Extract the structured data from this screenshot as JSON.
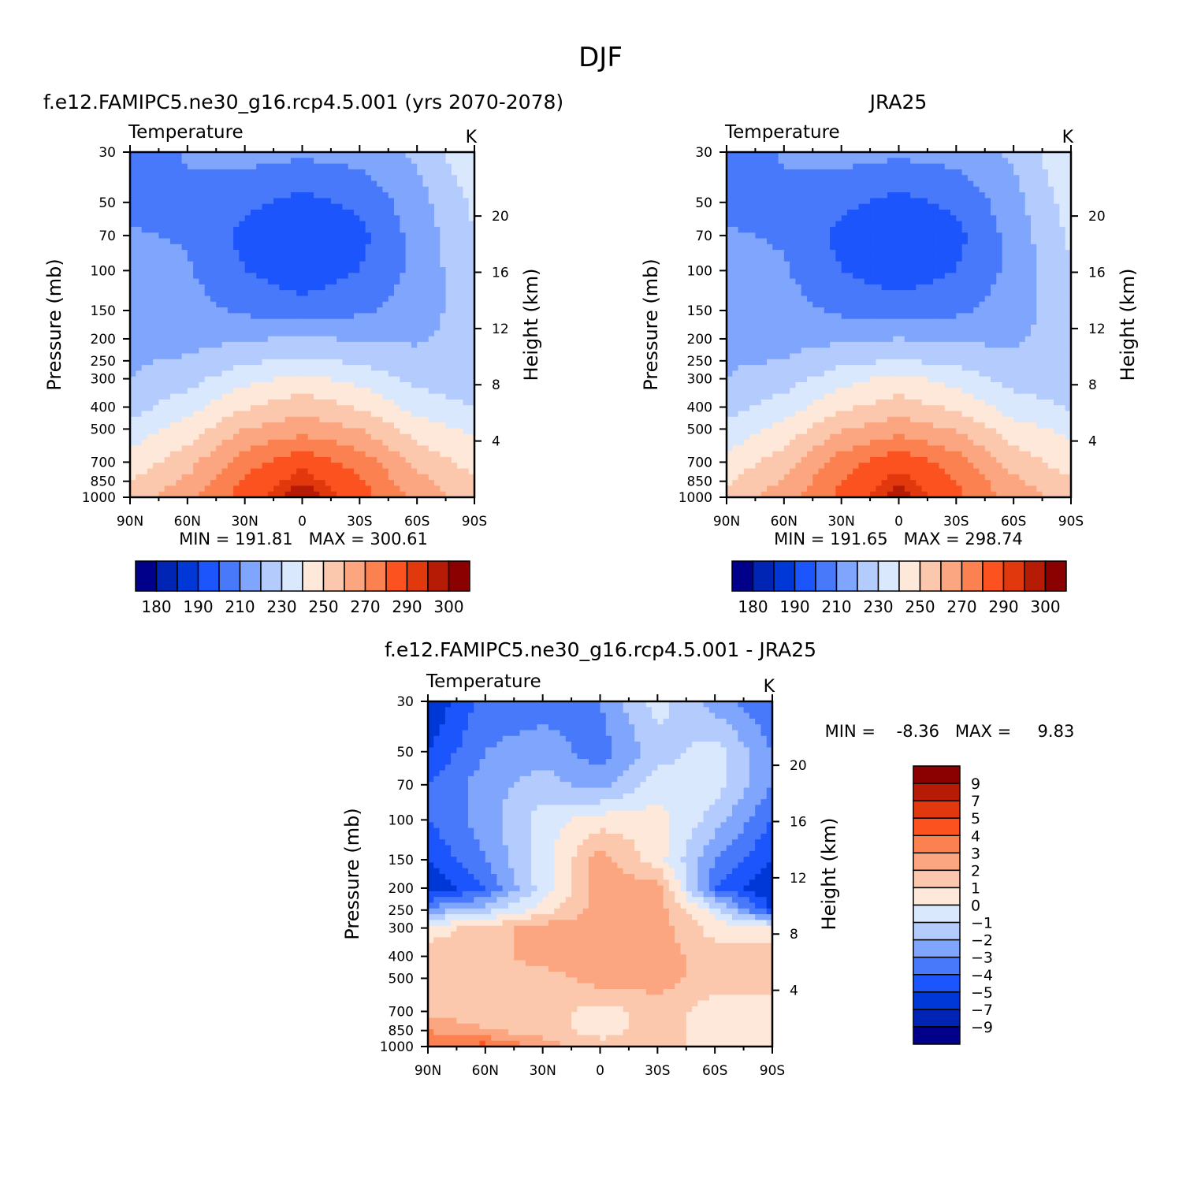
{
  "page_title": "DJF",
  "colors": {
    "temperature_scale": [
      "#00008b",
      "#0025b4",
      "#0038d8",
      "#1c55fc",
      "#4979fb",
      "#7fa6fc",
      "#b3cbfd",
      "#d9e8fd",
      "#fee8d9",
      "#fcc8ad",
      "#fba680",
      "#fb8150",
      "#fc5220",
      "#e2380e",
      "#b61b06",
      "#8b0000"
    ],
    "difference_scale": [
      "#00008b",
      "#0025b4",
      "#0038d8",
      "#1c55fc",
      "#4979fb",
      "#7fa6fc",
      "#b3cbfd",
      "#d9e8fd",
      "#fee8d9",
      "#fcc8ad",
      "#fba680",
      "#fb8150",
      "#fc5220",
      "#e2380e",
      "#b61b06",
      "#8b0000"
    ]
  },
  "chart_data": [
    {
      "type": "heatmap",
      "title": "f.e12.FAMIPC5.ne30_g16.rcp4.5.001 (yrs 2070-2078)",
      "left_label": "Temperature",
      "right_label": "K",
      "xlabel": "",
      "ylabel": "Pressure (mb)",
      "ylabel_right": "Height (km)",
      "xticks": [
        "90N",
        "60N",
        "30N",
        "0",
        "30S",
        "60S",
        "90S"
      ],
      "yticks": [
        "30",
        "50",
        "70",
        "100",
        "150",
        "200",
        "250",
        "300",
        "400",
        "500",
        "700",
        "850",
        "1000"
      ],
      "yticks_right": [
        "20",
        "16",
        "12",
        "8",
        "4"
      ],
      "x": [
        90,
        60,
        30,
        0,
        -30,
        -60,
        -90
      ],
      "levels": [
        1000,
        850,
        700,
        500,
        400,
        300,
        250,
        200,
        150,
        100,
        70,
        50,
        30
      ],
      "values": [
        [
          254,
          268,
          285,
          300,
          285,
          268,
          254
        ],
        [
          250,
          262,
          281,
          295,
          281,
          263,
          252
        ],
        [
          244,
          256,
          276,
          287,
          276,
          257,
          246
        ],
        [
          234,
          244,
          260,
          266,
          260,
          245,
          238
        ],
        [
          226,
          236,
          249,
          256,
          249,
          236,
          230
        ],
        [
          220,
          226,
          237,
          243,
          237,
          227,
          224
        ],
        [
          219,
          221,
          228,
          232,
          228,
          222,
          223
        ],
        [
          218,
          217,
          219,
          221,
          219,
          219,
          224
        ],
        [
          217,
          214,
          208,
          205,
          208,
          215,
          226
        ],
        [
          214,
          211,
          200,
          193,
          200,
          213,
          228
        ],
        [
          211,
          209,
          197,
          192,
          197,
          214,
          230
        ],
        [
          207,
          208,
          202,
          197,
          202,
          216,
          232
        ],
        [
          203,
          211,
          214,
          212,
          214,
          222,
          239
        ]
      ],
      "stats": "MIN = 191.81   MAX = 300.61",
      "colorbar": {
        "levels": [
          180,
          185,
          190,
          200,
          210,
          220,
          230,
          240,
          250,
          260,
          270,
          280,
          290,
          295,
          300
        ],
        "labels": [
          "180",
          "190",
          "210",
          "230",
          "250",
          "270",
          "290",
          "300"
        ]
      }
    },
    {
      "type": "heatmap",
      "title": "JRA25",
      "left_label": "Temperature",
      "right_label": "K",
      "xlabel": "",
      "ylabel": "Pressure (mb)",
      "ylabel_right": "Height (km)",
      "xticks": [
        "90N",
        "60N",
        "30N",
        "0",
        "30S",
        "60S",
        "90S"
      ],
      "yticks": [
        "30",
        "50",
        "70",
        "100",
        "150",
        "200",
        "250",
        "300",
        "400",
        "500",
        "700",
        "850",
        "1000"
      ],
      "yticks_right": [
        "20",
        "16",
        "12",
        "8",
        "4"
      ],
      "x": [
        90,
        60,
        30,
        0,
        -30,
        -60,
        -90
      ],
      "levels": [
        1000,
        850,
        700,
        500,
        400,
        300,
        250,
        200,
        150,
        100,
        70,
        50,
        30
      ],
      "values": [
        [
          252,
          266,
          283,
          298,
          283,
          266,
          256
        ],
        [
          249,
          261,
          280,
          294,
          280,
          262,
          251
        ],
        [
          243,
          255,
          275,
          287,
          275,
          256,
          245
        ],
        [
          233,
          243,
          259,
          266,
          259,
          244,
          237
        ],
        [
          226,
          235,
          248,
          255,
          248,
          235,
          229
        ],
        [
          220,
          225,
          236,
          243,
          236,
          226,
          224
        ],
        [
          219,
          220,
          227,
          231,
          227,
          221,
          222
        ],
        [
          218,
          217,
          218,
          220,
          218,
          219,
          224
        ],
        [
          216,
          214,
          208,
          205,
          208,
          215,
          227
        ],
        [
          213,
          211,
          200,
          194,
          200,
          213,
          229
        ],
        [
          211,
          209,
          197,
          192,
          197,
          214,
          232
        ],
        [
          207,
          208,
          202,
          197,
          202,
          216,
          235
        ],
        [
          203,
          211,
          214,
          212,
          214,
          222,
          240
        ]
      ],
      "stats": "MIN = 191.65   MAX = 298.74",
      "colorbar": {
        "levels": [
          180,
          185,
          190,
          200,
          210,
          220,
          230,
          240,
          250,
          260,
          270,
          280,
          290,
          295,
          300
        ],
        "labels": [
          "180",
          "190",
          "210",
          "230",
          "250",
          "270",
          "290",
          "300"
        ]
      }
    },
    {
      "type": "heatmap",
      "title": "f.e12.FAMIPC5.ne30_g16.rcp4.5.001 - JRA25",
      "left_label": "Temperature",
      "right_label": "K",
      "xlabel": "",
      "ylabel": "Pressure (mb)",
      "ylabel_right": "Height (km)",
      "xticks": [
        "90N",
        "60N",
        "30N",
        "0",
        "30S",
        "60S",
        "90S"
      ],
      "yticks": [
        "30",
        "50",
        "70",
        "100",
        "150",
        "200",
        "250",
        "300",
        "400",
        "500",
        "700",
        "850",
        "1000"
      ],
      "yticks_right": [
        "20",
        "16",
        "12",
        "8",
        "4"
      ],
      "x": [
        90,
        60,
        30,
        0,
        -30,
        -60,
        -90
      ],
      "levels": [
        1000,
        850,
        700,
        500,
        400,
        300,
        250,
        200,
        150,
        100,
        70,
        50,
        30
      ],
      "values": [
        [
          3.5,
          4.5,
          2.5,
          1.5,
          1.5,
          0.5,
          0.5
        ],
        [
          3.0,
          2.0,
          1.5,
          0.5,
          1.5,
          0.5,
          0.5
        ],
        [
          1.5,
          1.5,
          1.5,
          0.5,
          1.5,
          0.5,
          0.5
        ],
        [
          1.5,
          1.5,
          1.5,
          2.5,
          2.5,
          1.5,
          1.5
        ],
        [
          1.5,
          1.5,
          2.5,
          2.5,
          2.5,
          1.5,
          1.5
        ],
        [
          0.5,
          1.5,
          2.5,
          2.5,
          2.5,
          0.5,
          0.5
        ],
        [
          -2.5,
          -1.5,
          0.5,
          2.5,
          2.5,
          -0.5,
          -5.0
        ],
        [
          -6.0,
          -4.0,
          -0.5,
          2.5,
          2.5,
          -4.0,
          -6.0
        ],
        [
          -5.0,
          -3.0,
          -0.5,
          2.5,
          0.5,
          -3.0,
          -5.0
        ],
        [
          -4.0,
          -2.5,
          -0.5,
          0.5,
          0.5,
          -1.5,
          -4.0
        ],
        [
          -4.0,
          -2.5,
          -1.5,
          -2.5,
          -0.5,
          -0.5,
          -3.0
        ],
        [
          -5.0,
          -3.0,
          -2.5,
          -3.5,
          -1.5,
          -0.5,
          -3.0
        ],
        [
          -6.0,
          -3.5,
          -3.5,
          -3.0,
          -0.5,
          -2.5,
          -4.0
        ]
      ],
      "stats": "MIN =    -8.36   MAX =     9.83",
      "colorbar": {
        "levels": [
          -9,
          -7,
          -5,
          -4,
          -3,
          -2,
          -1,
          0,
          1,
          2,
          3,
          4,
          5,
          7,
          9
        ],
        "labels": [
          "9",
          "7",
          "5",
          "4",
          "3",
          "2",
          "1",
          "0",
          "−1",
          "−2",
          "−3",
          "−4",
          "−5",
          "−7",
          "−9"
        ]
      }
    }
  ]
}
